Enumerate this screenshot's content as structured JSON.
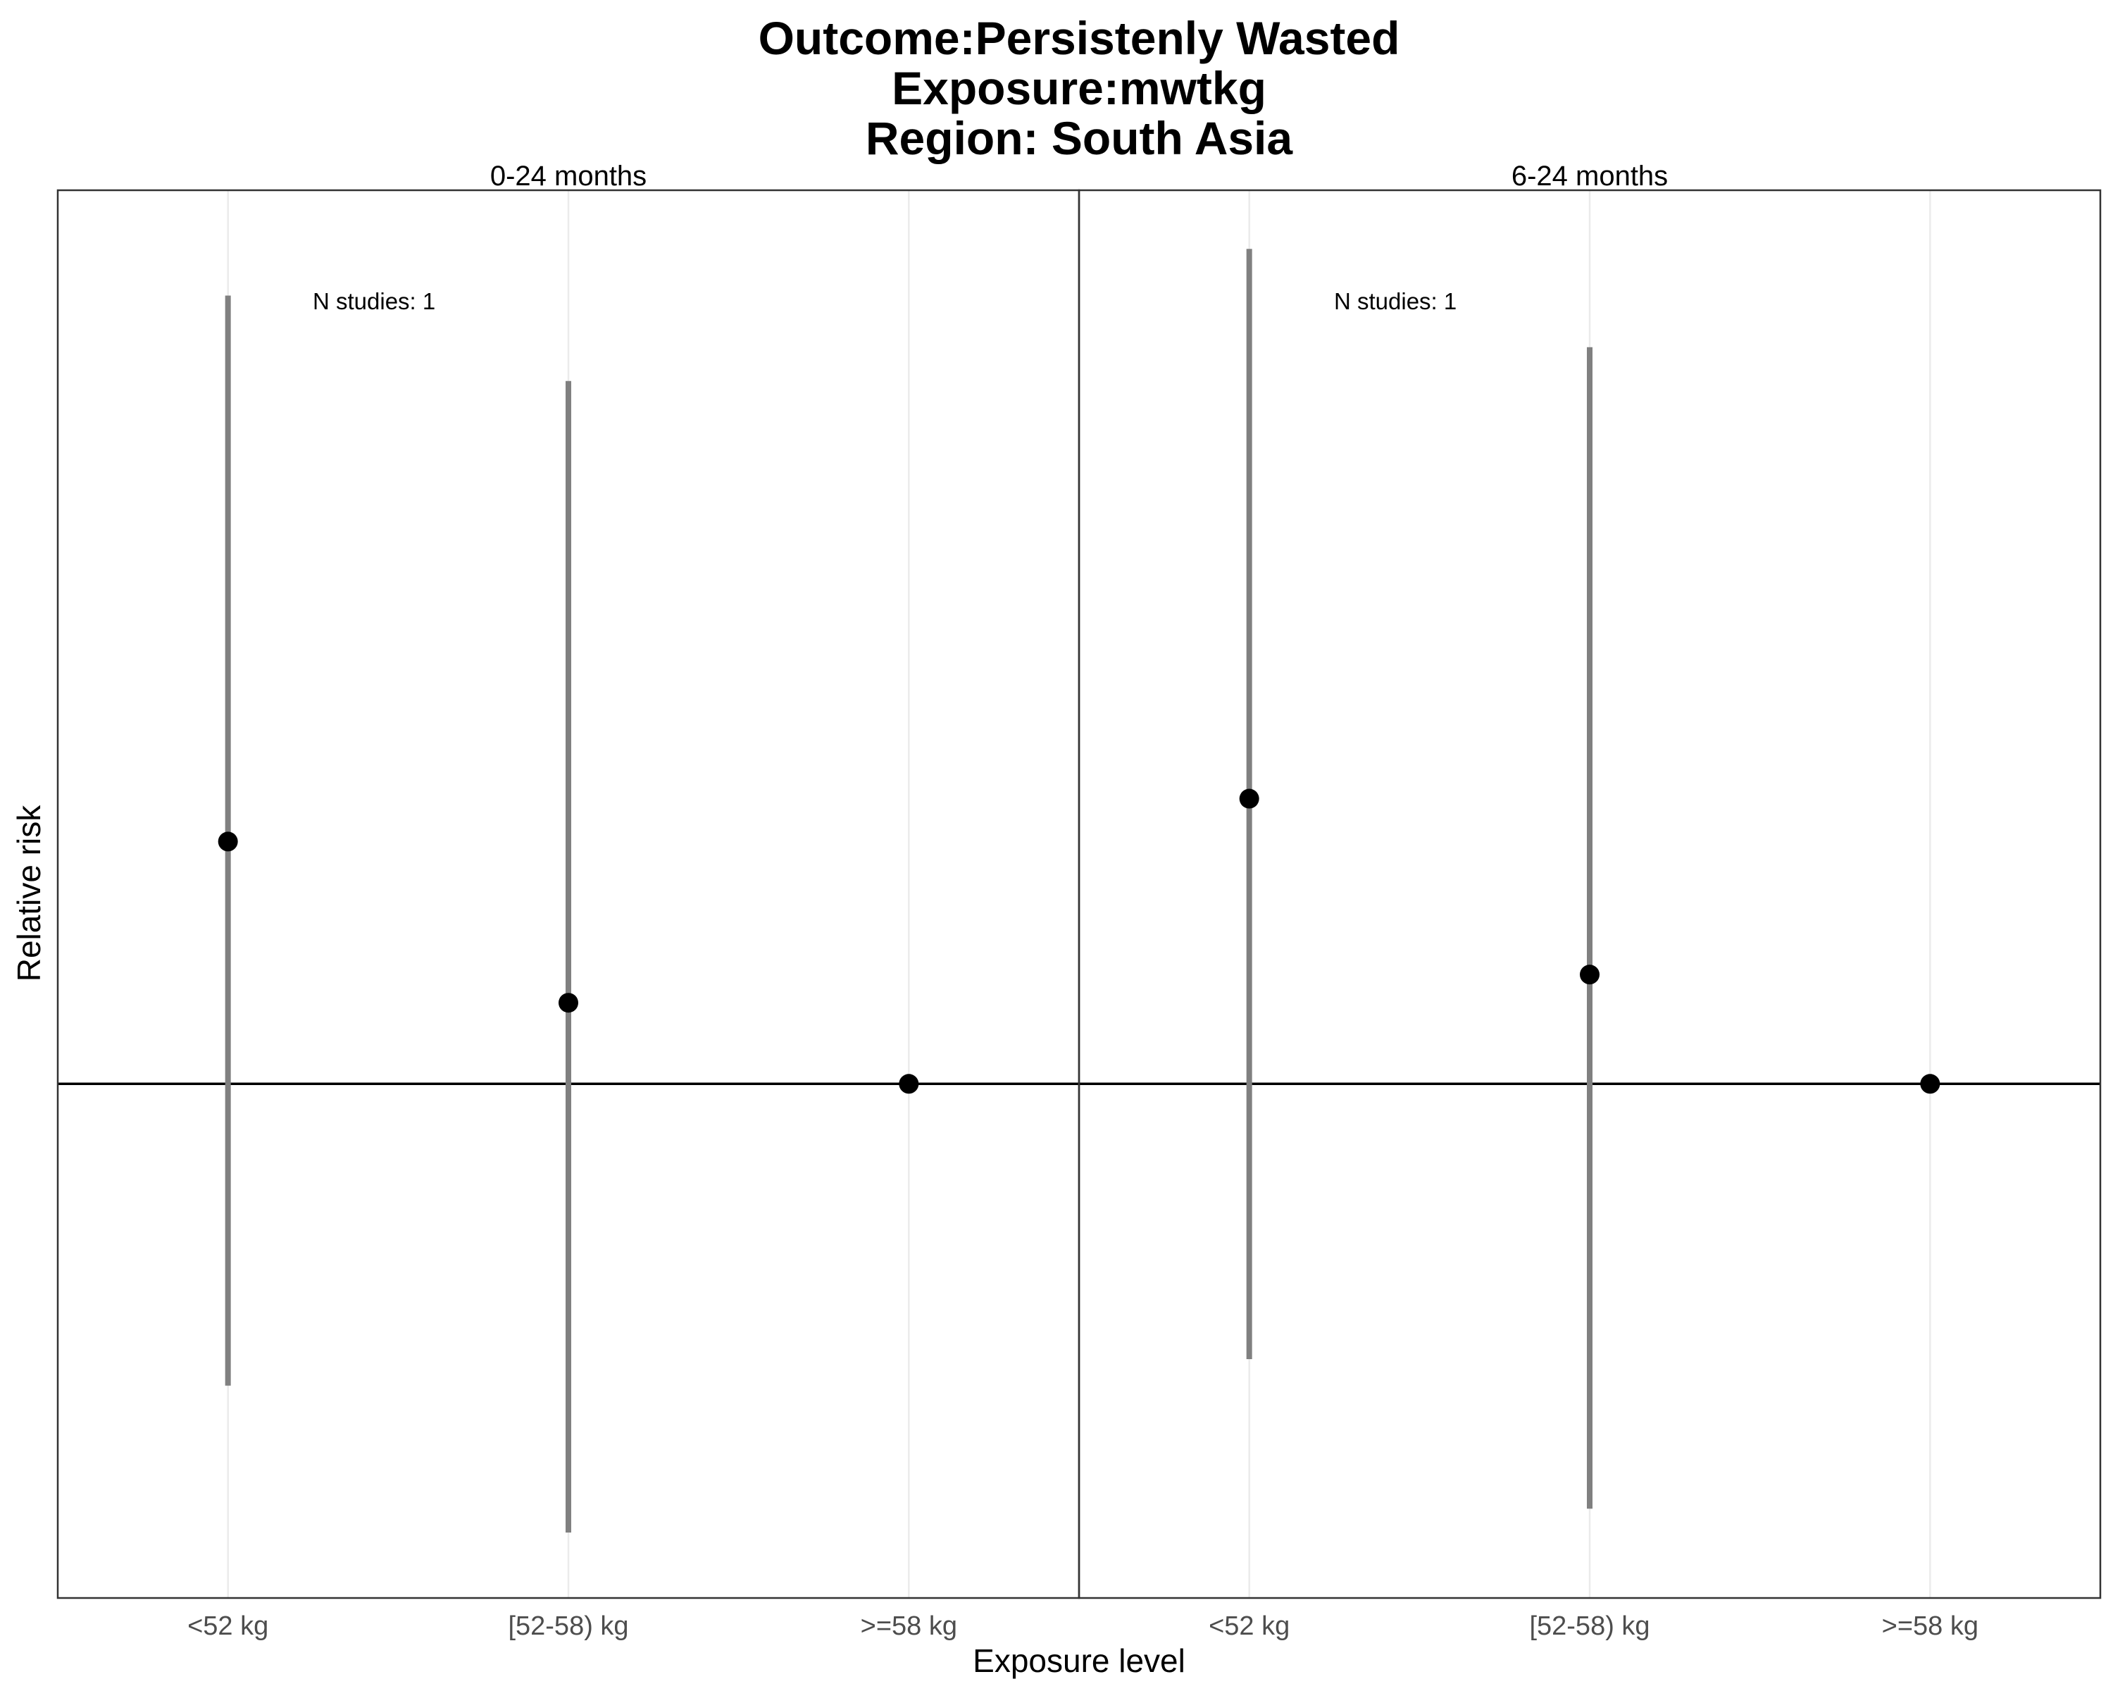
{
  "chart_data": {
    "type": "scatter",
    "subtype": "point-range",
    "title_lines": [
      "Outcome:Persistenly Wasted",
      "Exposure:mwtkg",
      "Region: South Asia"
    ],
    "xlabel": "Exposure level",
    "ylabel": "Relative risk",
    "categories": [
      "<52 kg",
      "[52-58) kg",
      ">=58 kg"
    ],
    "reference_line": 1,
    "y_scale": "log",
    "y_tick_labels_shown": false,
    "grid": "vertical",
    "colors": {
      "point": "#000000",
      "interval": "#808080",
      "grid": "#ebebeb",
      "reference": "#000000"
    },
    "panels": [
      {
        "label": "0-24 months",
        "annotation": "N studies: 1",
        "points": [
          {
            "category": "<52 kg",
            "estimate": 1.64,
            "lower": 0.54,
            "upper": 5.0
          },
          {
            "category": "[52-58) kg",
            "estimate": 1.18,
            "lower": 0.4,
            "upper": 4.2
          },
          {
            "category": ">=58 kg",
            "estimate": 1.0,
            "lower": null,
            "upper": null
          }
        ]
      },
      {
        "label": "6-24 months",
        "annotation": "N studies: 1",
        "points": [
          {
            "category": "<52 kg",
            "estimate": 1.79,
            "lower": 0.57,
            "upper": 5.5
          },
          {
            "category": "[52-58) kg",
            "estimate": 1.25,
            "lower": 0.42,
            "upper": 4.5
          },
          {
            "category": ">=58 kg",
            "estimate": 1.0,
            "lower": null,
            "upper": null
          }
        ]
      }
    ],
    "ylim": [
      0.35,
      6.2
    ]
  }
}
